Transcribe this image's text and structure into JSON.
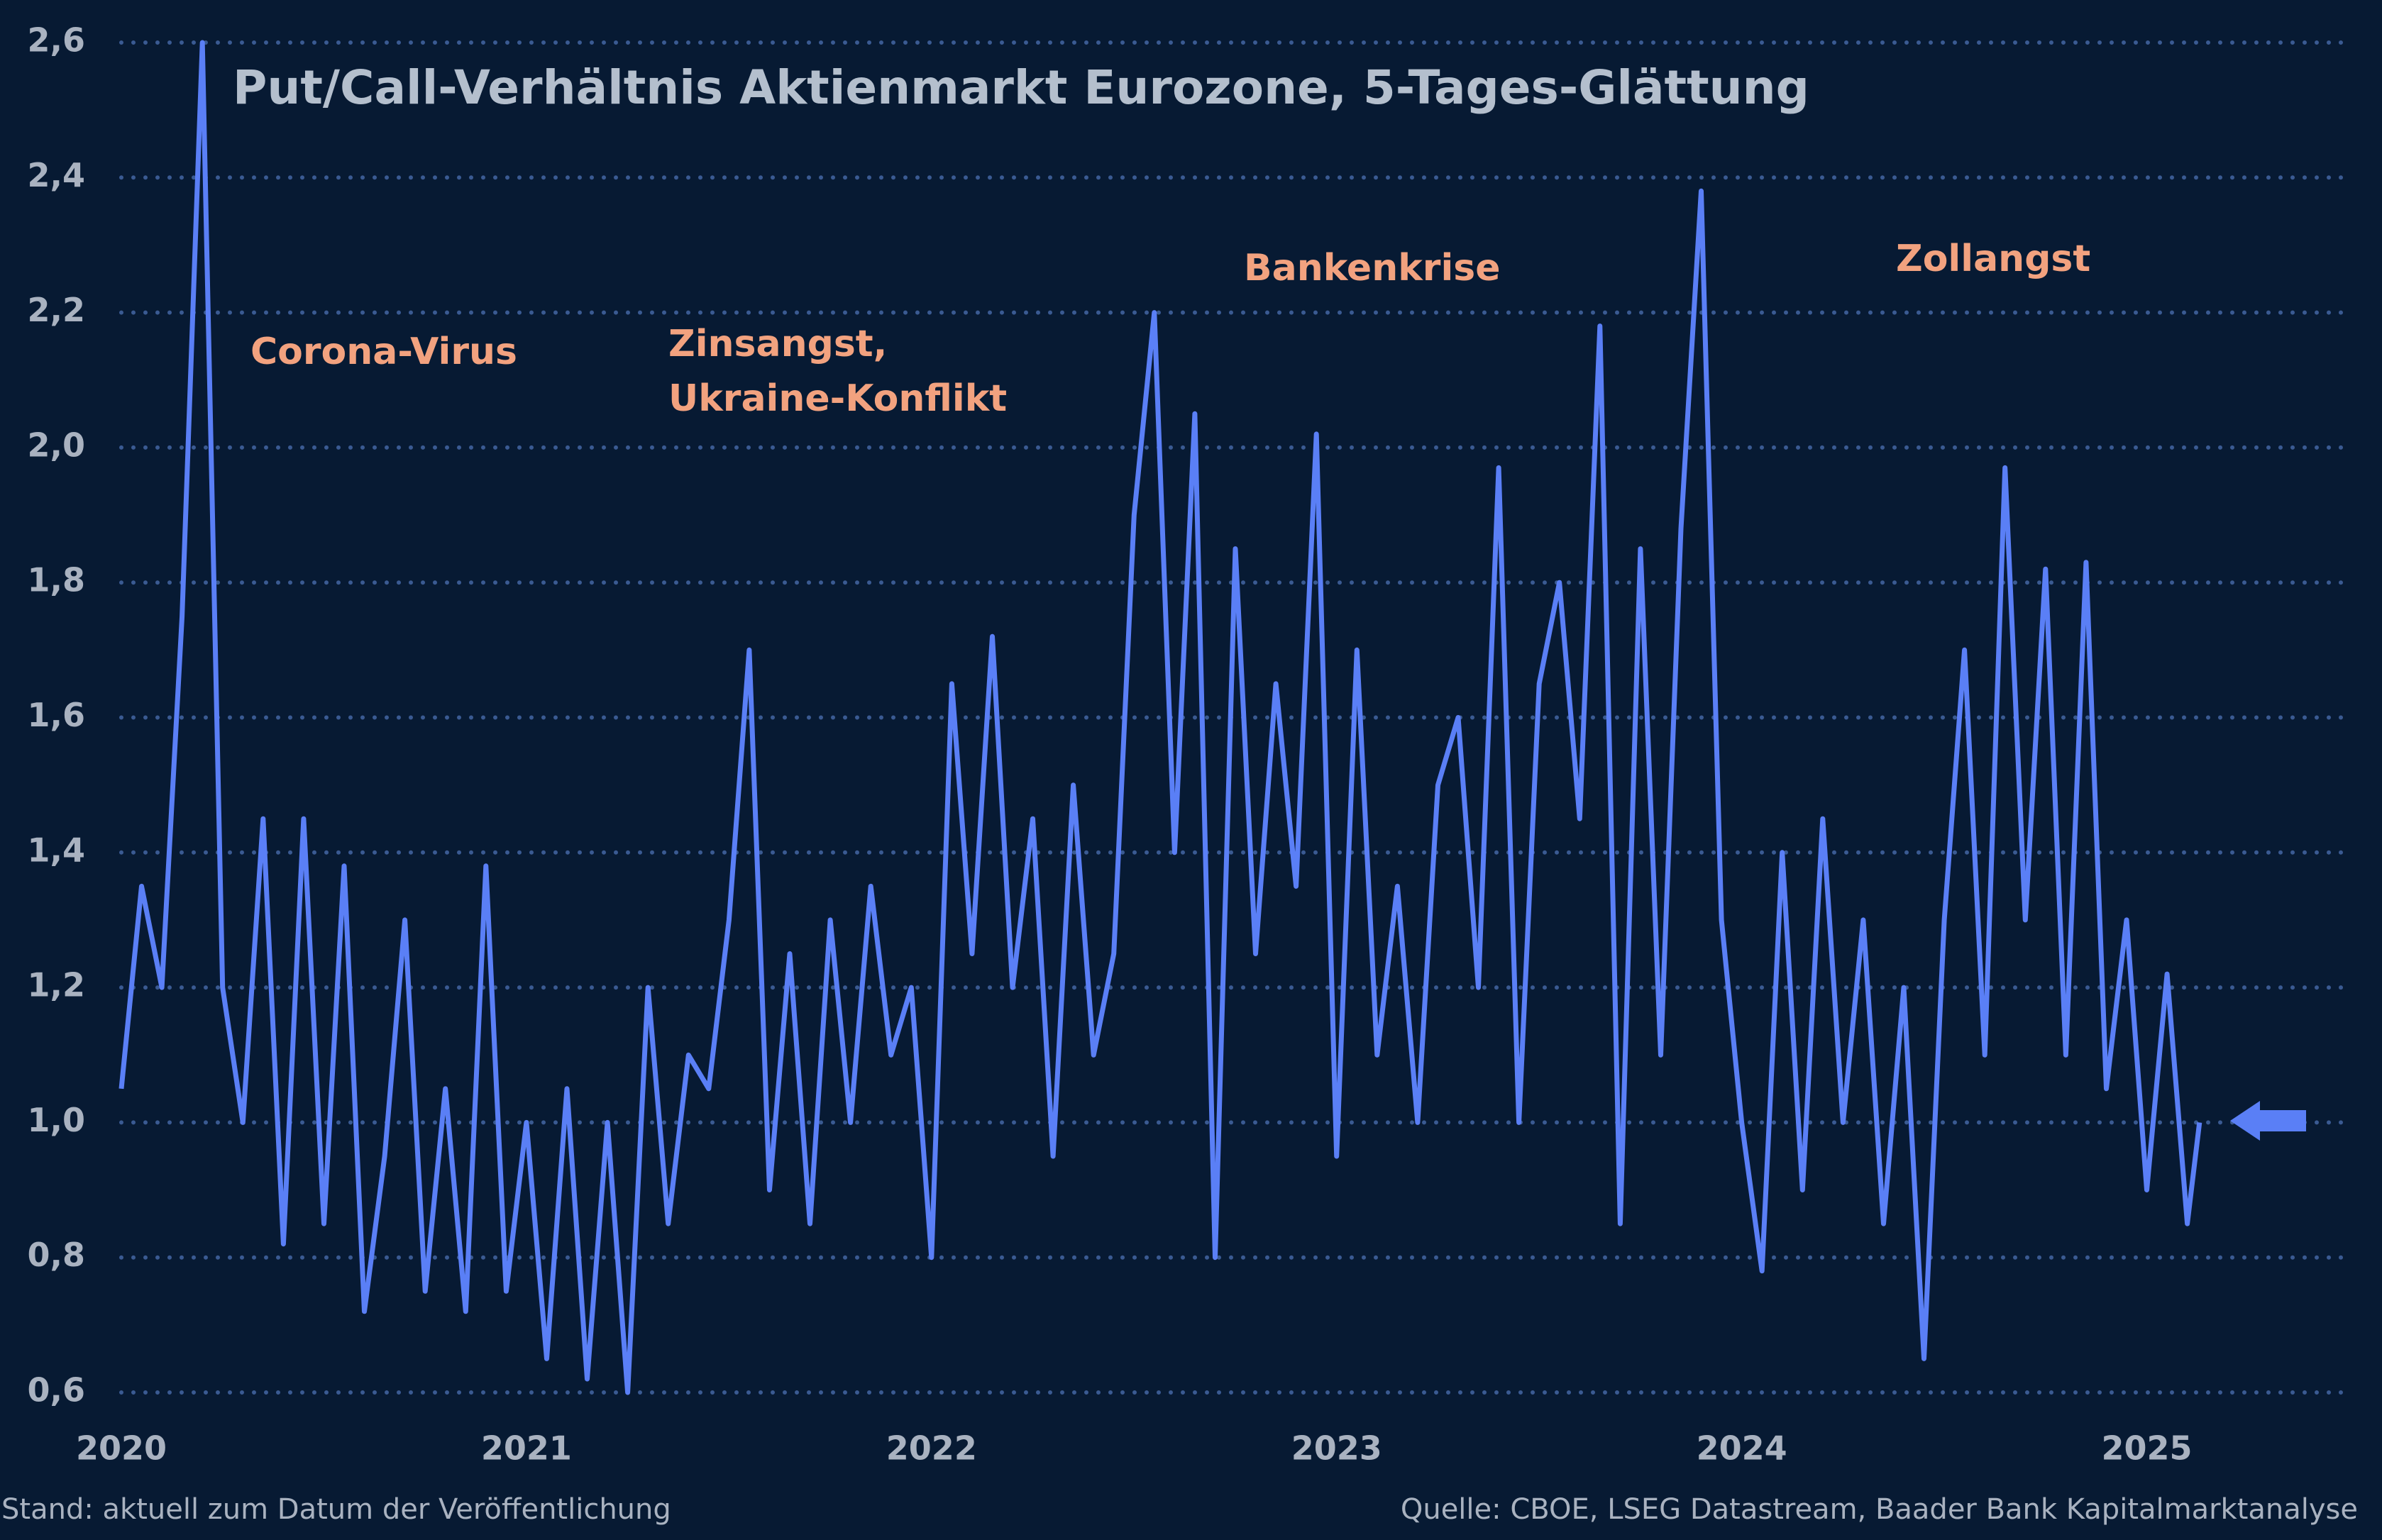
{
  "chart_data": {
    "type": "line",
    "title": "Put/Call-Verhältnis Aktienmarkt Eurozone, 5-Tages-Glättung",
    "annotations": [
      "Corona-Virus",
      "Zinsangst,",
      "Ukraine-Konflikt",
      "Bankenkrise",
      "Zollangst"
    ],
    "note": "Stand: aktuell zum Datum der Veröffentlichung",
    "source": "Quelle: CBOE, LSEG Datastream, Baader Bank Kapitalmarktanalyse",
    "color": "#5a7ff6",
    "grid": true,
    "xlim": [
      2020,
      2025.5
    ],
    "xticks": [
      2020,
      2021,
      2022,
      2023,
      2024,
      2025
    ],
    "ylim": [
      0.6,
      2.6
    ],
    "yticks": [
      {
        "value": 0.6,
        "label": "0,6"
      },
      {
        "value": 0.8,
        "label": "0,8"
      },
      {
        "value": 1.0,
        "label": "1,0"
      },
      {
        "value": 1.2,
        "label": "1,2"
      },
      {
        "value": 1.4,
        "label": "1,4"
      },
      {
        "value": 1.6,
        "label": "1,6"
      },
      {
        "value": 1.8,
        "label": "1,8"
      },
      {
        "value": 2.0,
        "label": "2,0"
      },
      {
        "value": 2.2,
        "label": "2,2"
      },
      {
        "value": 2.4,
        "label": "2,4"
      },
      {
        "value": 2.6,
        "label": "2,6"
      }
    ],
    "x": [
      2020.0,
      2020.05,
      2020.1,
      2020.15,
      2020.2,
      2020.25,
      2020.3,
      2020.35,
      2020.4,
      2020.45,
      2020.5,
      2020.55,
      2020.6,
      2020.65,
      2020.7,
      2020.75,
      2020.8,
      2020.85,
      2020.9,
      2020.95,
      2021.0,
      2021.05,
      2021.1,
      2021.15,
      2021.2,
      2021.25,
      2021.3,
      2021.35,
      2021.4,
      2021.45,
      2021.5,
      2021.55,
      2021.6,
      2021.65,
      2021.7,
      2021.75,
      2021.8,
      2021.85,
      2021.9,
      2021.95,
      2022.0,
      2022.05,
      2022.1,
      2022.15,
      2022.2,
      2022.25,
      2022.3,
      2022.35,
      2022.4,
      2022.45,
      2022.5,
      2022.55,
      2022.6,
      2022.65,
      2022.7,
      2022.75,
      2022.8,
      2022.85,
      2022.9,
      2022.95,
      2023.0,
      2023.05,
      2023.1,
      2023.15,
      2023.2,
      2023.25,
      2023.3,
      2023.35,
      2023.4,
      2023.45,
      2023.5,
      2023.55,
      2023.6,
      2023.65,
      2023.7,
      2023.75,
      2023.8,
      2023.85,
      2023.9,
      2023.95,
      2024.0,
      2024.05,
      2024.1,
      2024.15,
      2024.2,
      2024.25,
      2024.3,
      2024.35,
      2024.4,
      2024.45,
      2024.5,
      2024.55,
      2024.6,
      2024.65,
      2024.7,
      2024.75,
      2024.8,
      2024.85,
      2024.9,
      2024.95,
      2025.0,
      2025.05,
      2025.1,
      2025.13
    ],
    "values": [
      1.05,
      1.35,
      1.2,
      1.75,
      2.6,
      1.2,
      1.0,
      1.45,
      0.82,
      1.45,
      0.85,
      1.38,
      0.72,
      0.95,
      1.3,
      0.75,
      1.05,
      0.72,
      1.38,
      0.75,
      1.0,
      0.65,
      1.05,
      0.62,
      1.0,
      0.6,
      1.2,
      0.85,
      1.1,
      1.05,
      1.3,
      1.7,
      0.9,
      1.25,
      0.85,
      1.3,
      1.0,
      1.35,
      1.1,
      1.2,
      0.8,
      1.65,
      1.25,
      1.72,
      1.2,
      1.45,
      0.95,
      1.5,
      1.1,
      1.25,
      1.9,
      2.2,
      1.4,
      2.05,
      0.8,
      1.85,
      1.25,
      1.65,
      1.35,
      2.02,
      0.95,
      1.7,
      1.1,
      1.35,
      1.0,
      1.5,
      1.6,
      1.2,
      1.97,
      1.0,
      1.65,
      1.8,
      1.45,
      2.18,
      0.85,
      1.85,
      1.1,
      1.88,
      2.38,
      1.3,
      1.0,
      0.78,
      1.4,
      0.9,
      1.45,
      1.0,
      1.3,
      0.85,
      1.2,
      0.65,
      1.3,
      1.7,
      1.1,
      1.97,
      1.3,
      1.82,
      1.1,
      1.83,
      1.05,
      1.3,
      0.9,
      1.22,
      0.85,
      1.0
    ]
  }
}
